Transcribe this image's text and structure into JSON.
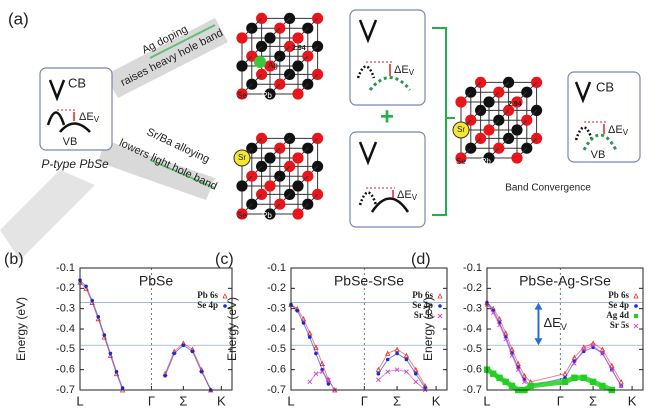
{
  "figure": {
    "panel_a": {
      "label": "(a)",
      "left_box": {
        "cb": "CB",
        "vb": "VB",
        "delta": "ΔE",
        "delta_sub": "V"
      },
      "left_caption": "P-type PbSe",
      "arrow_top": [
        "Ag doping",
        "raises heavy hole band"
      ],
      "arrow_bottom": [
        "Sr/Ba alloying",
        "lowers light hole band"
      ],
      "top_box": {
        "delta": "ΔE",
        "delta_sub": "V"
      },
      "bottom_box": {
        "delta": "ΔE",
        "delta_sub": "V"
      },
      "right_box": {
        "cb": "CB",
        "vb": "VB",
        "delta": "ΔE",
        "delta_sub": "V"
      },
      "right_caption": "Band Convergence",
      "atoms": {
        "se": "Se",
        "pb": "Pb",
        "sr": "Sr",
        "ag": "Ag",
        "bond": "2.94"
      }
    }
  },
  "chart_data": [
    {
      "type": "line",
      "panel_label": "(b)",
      "title": "PbSe",
      "ylabel": "Energy (eV)",
      "xlim": [
        0,
        1
      ],
      "xticks": [
        {
          "value": 0,
          "label": "L"
        },
        {
          "value": 0.47,
          "label": "Γ"
        },
        {
          "value": 0.68,
          "label": "Σ"
        },
        {
          "value": 0.93,
          "label": "K"
        }
      ],
      "ylim": [
        -0.7,
        -0.1
      ],
      "yticks": [
        -0.1,
        -0.2,
        -0.3,
        -0.4,
        -0.5,
        -0.6,
        -0.7
      ],
      "reference_lines": [
        -0.27,
        -0.48
      ],
      "legend": "upper right",
      "x": [
        0,
        0.04,
        0.08,
        0.12,
        0.16,
        0.2,
        0.24,
        0.28,
        0.5,
        0.56,
        0.62,
        0.68,
        0.74,
        0.8,
        0.86
      ],
      "series": [
        {
          "name": "Pb 6s",
          "color": "#e8302a",
          "values": [
            -0.17,
            -0.2,
            -0.27,
            -0.35,
            -0.44,
            -0.53,
            -0.62,
            -0.7,
            null,
            -0.62,
            -0.51,
            -0.47,
            -0.5,
            -0.6,
            -0.7
          ]
        },
        {
          "name": "Se 4p",
          "color": "#1a2bd6",
          "values": [
            -0.16,
            -0.19,
            -0.26,
            -0.34,
            -0.43,
            -0.52,
            -0.61,
            -0.69,
            null,
            -0.63,
            -0.52,
            -0.48,
            -0.51,
            -0.61,
            -0.7
          ]
        }
      ]
    },
    {
      "type": "line",
      "panel_label": "(c)",
      "title": "PbSe-SrSe",
      "ylabel": "Energy (eV)",
      "xlim": [
        0,
        1
      ],
      "xticks": [
        {
          "value": 0,
          "label": "L"
        },
        {
          "value": 0.47,
          "label": "Γ"
        },
        {
          "value": 0.68,
          "label": "Σ"
        },
        {
          "value": 0.93,
          "label": "K"
        }
      ],
      "ylim": [
        -0.7,
        -0.1
      ],
      "yticks": [
        -0.1,
        -0.2,
        -0.3,
        -0.4,
        -0.5,
        -0.6,
        -0.7
      ],
      "reference_lines": [
        -0.27,
        -0.48
      ],
      "legend": "upper right",
      "x": [
        0,
        0.04,
        0.08,
        0.12,
        0.16,
        0.2,
        0.24,
        0.28,
        0.5,
        0.56,
        0.62,
        0.68,
        0.74,
        0.8,
        0.86
      ],
      "series": [
        {
          "name": "Pb 6s",
          "color": "#e8302a",
          "values": [
            -0.28,
            -0.3,
            -0.35,
            -0.42,
            -0.49,
            -0.57,
            -0.65,
            -0.7,
            null,
            -0.6,
            -0.52,
            -0.5,
            -0.53,
            -0.6,
            -0.68
          ]
        },
        {
          "name": "Se 4p",
          "color": "#1a2bd6",
          "values": [
            -0.28,
            -0.31,
            -0.37,
            -0.44,
            -0.52,
            -0.6,
            -0.67,
            null,
            null,
            -0.62,
            -0.55,
            -0.52,
            -0.55,
            -0.62,
            -0.69
          ]
        },
        {
          "name": "Sr 5s",
          "color": "#d040d0",
          "values": [
            null,
            null,
            null,
            -0.66,
            -0.62,
            -0.61,
            -0.65,
            -0.7,
            null,
            -0.65,
            -0.61,
            -0.6,
            -0.61,
            -0.66,
            -0.7
          ]
        }
      ]
    },
    {
      "type": "line",
      "panel_label": "(d)",
      "title": "PbSe-Ag-SrSe",
      "ylabel": "Energy (eV)",
      "xlim": [
        0,
        1
      ],
      "xticks": [
        {
          "value": 0,
          "label": "L"
        },
        {
          "value": 0.47,
          "label": "Γ"
        },
        {
          "value": 0.68,
          "label": "Σ"
        },
        {
          "value": 0.93,
          "label": "K"
        }
      ],
      "ylim": [
        -0.7,
        -0.1
      ],
      "yticks": [
        -0.1,
        -0.2,
        -0.3,
        -0.4,
        -0.5,
        -0.6,
        -0.7
      ],
      "reference_lines": [
        -0.27,
        -0.48
      ],
      "legend": "upper right",
      "annotation": {
        "delta": "ΔE",
        "delta_sub": "V"
      },
      "x": [
        0,
        0.04,
        0.08,
        0.12,
        0.16,
        0.2,
        0.24,
        0.28,
        0.5,
        0.56,
        0.62,
        0.68,
        0.74,
        0.8,
        0.86
      ],
      "series": [
        {
          "name": "Pb 6s",
          "color": "#e8302a",
          "values": [
            -0.27,
            -0.3,
            -0.35,
            -0.42,
            -0.5,
            -0.57,
            -0.63,
            -0.66,
            -0.62,
            -0.54,
            -0.49,
            -0.47,
            -0.5,
            -0.58,
            -0.66
          ]
        },
        {
          "name": "Se 4p",
          "color": "#1a2bd6",
          "values": [
            -0.27,
            -0.31,
            -0.37,
            -0.44,
            -0.52,
            -0.59,
            -0.65,
            -0.68,
            -0.64,
            -0.56,
            -0.51,
            -0.49,
            -0.52,
            -0.6,
            -0.68
          ]
        },
        {
          "name": "Ag 4d",
          "color": "#22d022",
          "values": [
            -0.6,
            -0.62,
            -0.64,
            -0.66,
            -0.68,
            -0.7,
            -0.7,
            -0.68,
            -0.66,
            -0.64,
            -0.64,
            -0.66,
            -0.68,
            -0.7,
            null
          ]
        },
        {
          "name": "Sr 5s",
          "color": "#d040d0",
          "values": [
            -0.28,
            -0.32,
            -0.38,
            -0.45,
            -0.53,
            -0.6,
            -0.66,
            null,
            null,
            -0.57,
            -0.5,
            -0.48,
            -0.52,
            -0.6,
            -0.68
          ]
        }
      ]
    }
  ]
}
